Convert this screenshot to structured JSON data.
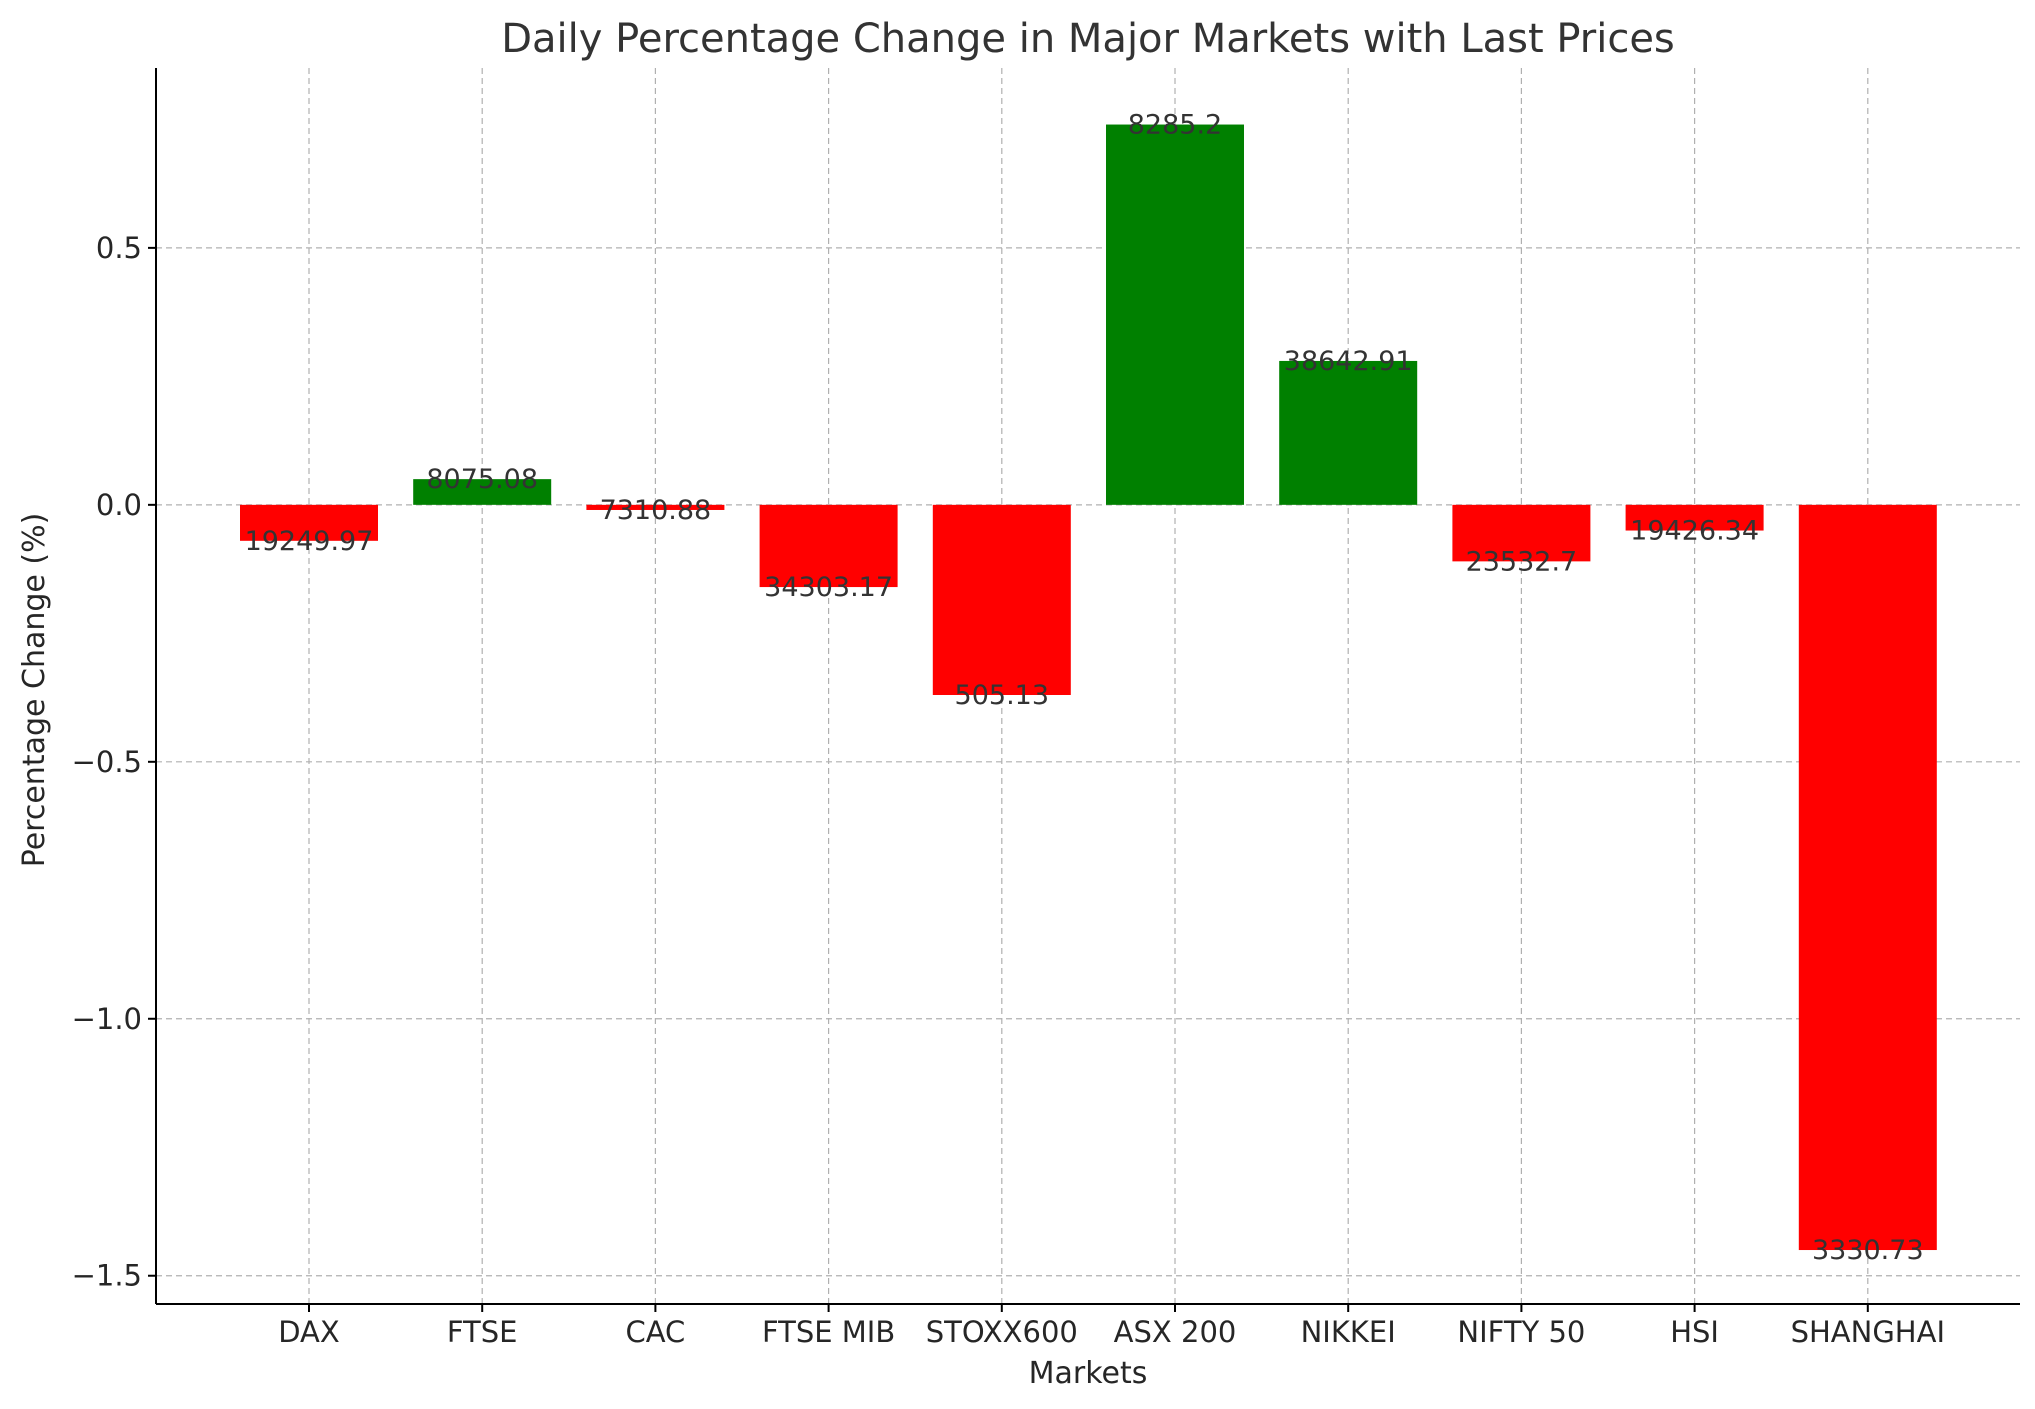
{
  "chart_data": {
    "type": "bar",
    "title": "Daily Percentage Change in Major Markets with Last Prices",
    "xlabel": "Markets",
    "ylabel": "Percentage Change (%)",
    "categories": [
      "DAX",
      "FTSE",
      "CAC",
      "FTSE MIB",
      "STOXX600",
      "ASX 200",
      "NIKKEI",
      "NIFTY 50",
      "HSI",
      "SHANGHAI"
    ],
    "values": [
      -0.07,
      0.05,
      -0.01,
      -0.16,
      -0.37,
      0.74,
      0.28,
      -0.11,
      -0.05,
      -1.45
    ],
    "bar_labels": [
      "19249.97",
      "8075.08",
      "7310.88",
      "34303.17",
      "505.13",
      "8285.2",
      "38642.91",
      "23532.7",
      "19426.34",
      "3330.73"
    ],
    "yticks": [
      0.5,
      0.0,
      -0.5,
      -1.0,
      -1.5
    ],
    "ytick_labels": [
      "0.5",
      "0.0",
      "−0.5",
      "−1.0",
      "−1.5"
    ],
    "ylim": [
      -1.555,
      0.85
    ],
    "grid": true,
    "colors": {
      "positive": "#008000",
      "negative": "#ff0000"
    }
  }
}
